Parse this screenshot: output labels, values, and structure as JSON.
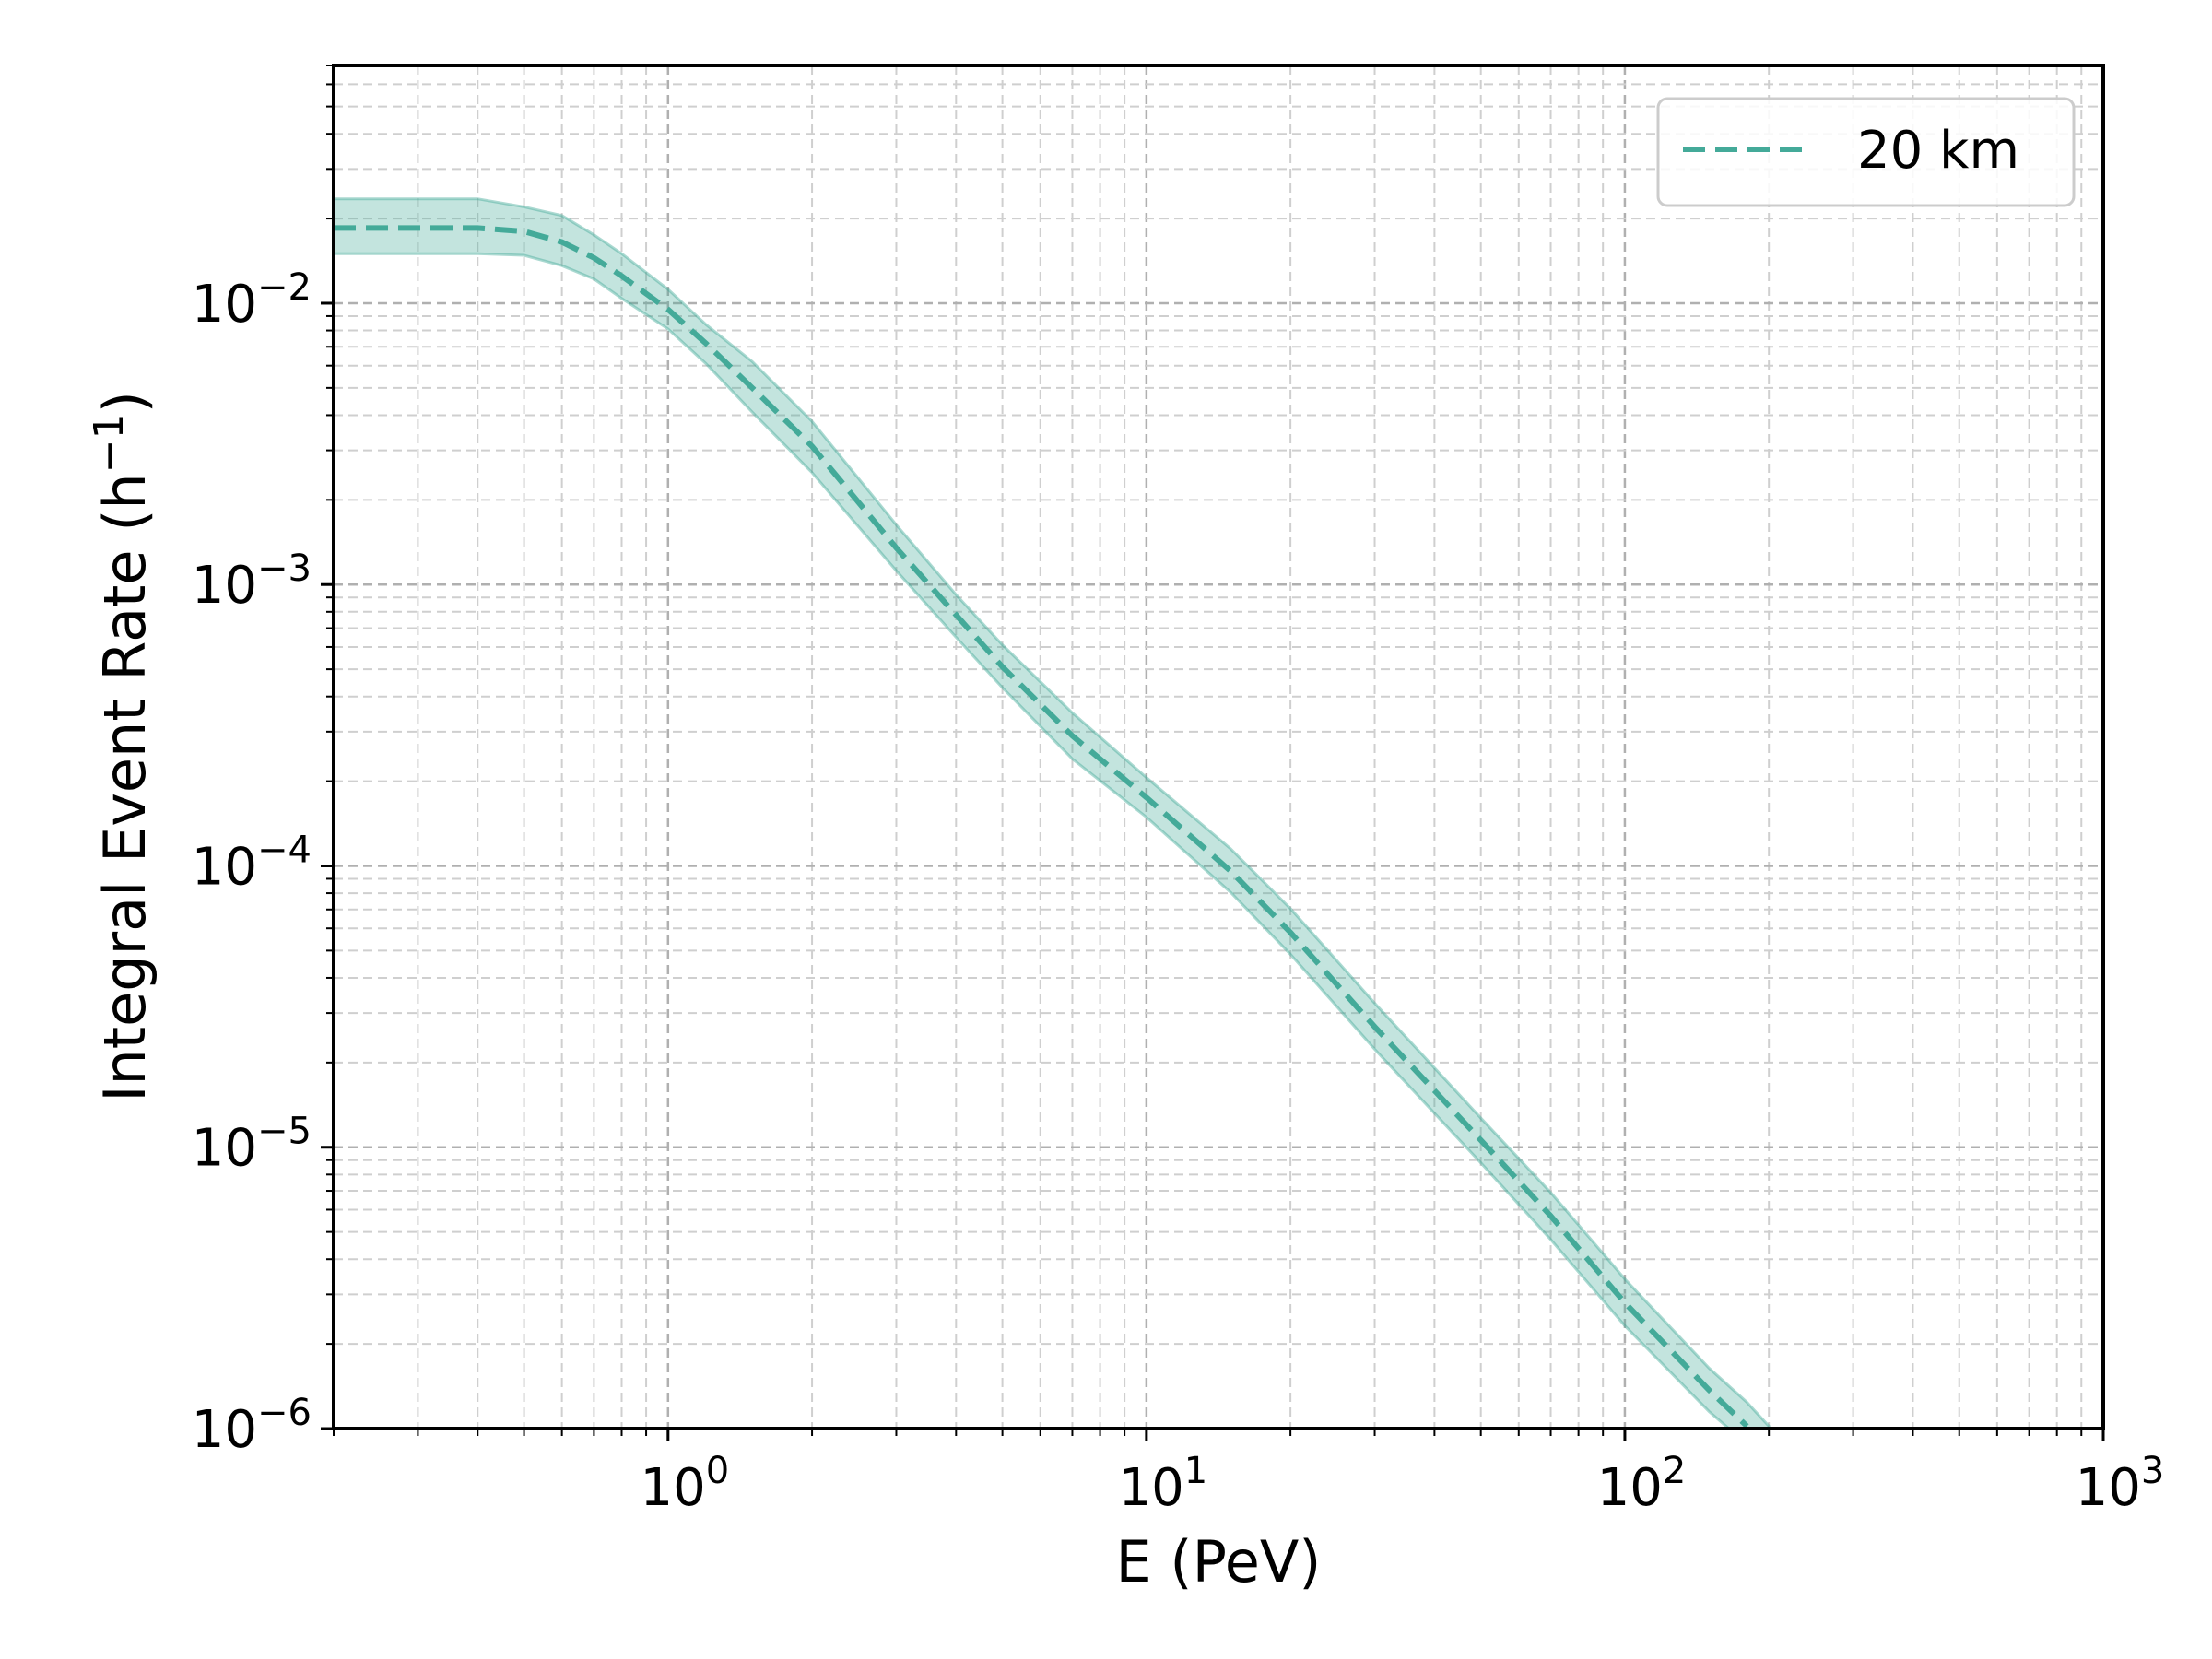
{
  "chart_data": {
    "type": "line",
    "xlabel": "E (PeV)",
    "ylabel": "Integral Event Rate (h",
    "ylabel_sup": "−1",
    "ylabel_close": ")",
    "x_scale": "log",
    "y_scale": "log",
    "xlim": [
      0.2,
      1000
    ],
    "ylim": [
      1e-06,
      0.07
    ],
    "grid": true,
    "legend_position": "top-right",
    "x_ticks": [
      {
        "value": 1,
        "base": "10",
        "exp": "0"
      },
      {
        "value": 10,
        "base": "10",
        "exp": "1"
      },
      {
        "value": 100,
        "base": "10",
        "exp": "2"
      },
      {
        "value": 1000,
        "base": "10",
        "exp": "3"
      }
    ],
    "y_ticks": [
      {
        "value": 0.01,
        "base": "10",
        "exp": "−2"
      },
      {
        "value": 0.001,
        "base": "10",
        "exp": "−3"
      },
      {
        "value": 0.0001,
        "base": "10",
        "exp": "−4"
      },
      {
        "value": 1e-05,
        "base": "10",
        "exp": "−5"
      },
      {
        "value": 1e-06,
        "base": "10",
        "exp": "−6"
      }
    ],
    "series": [
      {
        "name": "20 km",
        "color": "#44aa99",
        "line_style": "dashed",
        "x": [
          0.2,
          0.3,
          0.4,
          0.5,
          0.6,
          0.7,
          0.8,
          1.0,
          1.2,
          1.5,
          2.0,
          3.0,
          4.0,
          5.0,
          7.0,
          10,
          15,
          20,
          30,
          50,
          70,
          100,
          150,
          180
        ],
        "y": [
          0.0185,
          0.0185,
          0.0185,
          0.018,
          0.0165,
          0.0145,
          0.0125,
          0.0095,
          0.0072,
          0.005,
          0.0031,
          0.00135,
          0.00078,
          0.00051,
          0.00029,
          0.000175,
          9.58e-05,
          5.8e-05,
          2.68e-05,
          1.06e-05,
          5.7e-06,
          2.8e-06,
          1.37e-06,
          1.02e-06
        ]
      }
    ],
    "band": {
      "color": "#44aa99",
      "x": [
        0.2,
        0.3,
        0.4,
        0.5,
        0.6,
        0.7,
        0.8,
        1.0,
        1.2,
        1.5,
        2.0,
        3.0,
        4.0,
        5.0,
        7.0,
        10,
        15,
        20,
        30,
        50,
        70,
        100,
        150,
        180,
        200
      ],
      "y_upper": [
        0.0235,
        0.0235,
        0.0235,
        0.022,
        0.0205,
        0.0175,
        0.015,
        0.0112,
        0.0084,
        0.0062,
        0.0038,
        0.00163,
        0.00092,
        0.00061,
        0.00035,
        0.000206,
        0.000115,
        7.05e-05,
        3.25e-05,
        1.27e-05,
        6.9e-06,
        3.4e-06,
        1.64e-06,
        1.24e-06,
        1.02e-06
      ],
      "y_lower": [
        0.015,
        0.015,
        0.015,
        0.0148,
        0.0136,
        0.0122,
        0.0104,
        0.0081,
        0.0061,
        0.0041,
        0.0025,
        0.00112,
        0.00065,
        0.00043,
        0.00024,
        0.000149,
        8.05e-05,
        4.85e-05,
        2.23e-05,
        8.8e-06,
        4.7e-06,
        2.32e-06,
        1.15e-06,
        8.8e-07,
        1e-06
      ]
    }
  }
}
